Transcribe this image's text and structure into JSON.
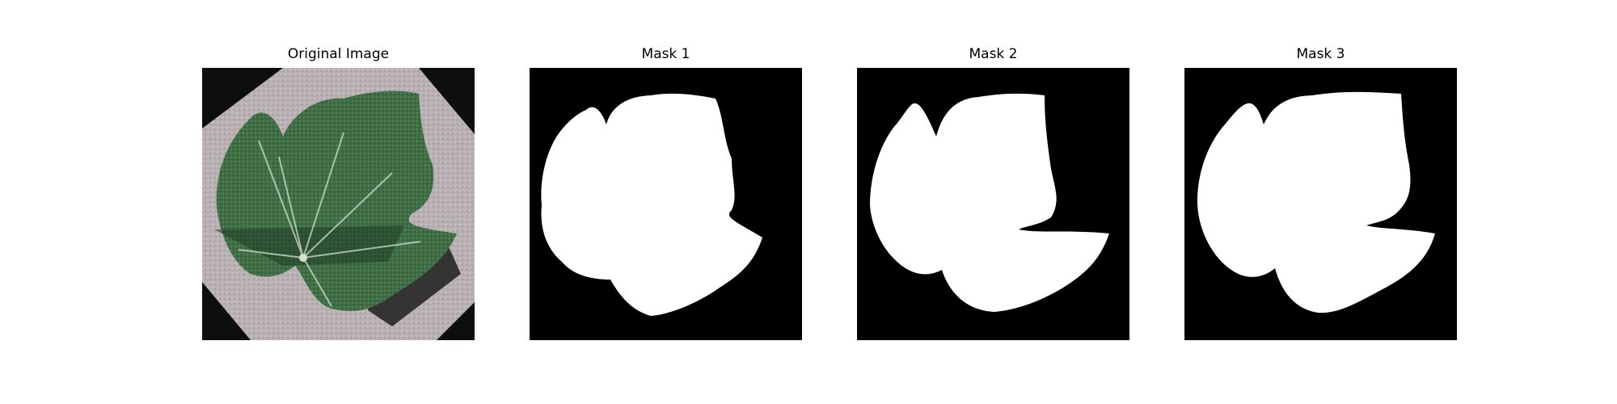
{
  "panels": [
    {
      "title": "Original Image",
      "kind": "photo",
      "subject": "leaf"
    },
    {
      "title": "Mask 1",
      "kind": "mask"
    },
    {
      "title": "Mask 2",
      "kind": "mask"
    },
    {
      "title": "Mask 3",
      "kind": "mask"
    }
  ],
  "colors": {
    "mask_background": "#000000",
    "mask_foreground": "#ffffff",
    "leaf_dark": "#2f5a34",
    "leaf_mid": "#4f7f55",
    "leaf_vein": "#cfe0cf",
    "paper": "#b9b0b3",
    "shadow": "#1c1f1c"
  }
}
